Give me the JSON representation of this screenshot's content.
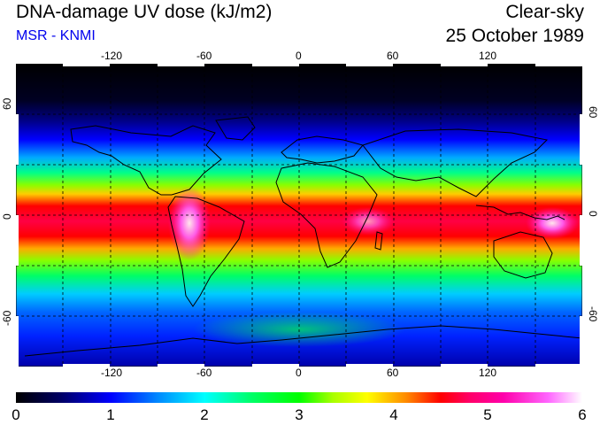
{
  "header": {
    "title": "DNA-damage UV dose (kJ/m2)",
    "subtitle": "MSR - KNMI",
    "condition": "Clear-sky",
    "date": "25 October 1989"
  },
  "map": {
    "lon_range": [
      -180,
      180
    ],
    "lat_range": [
      -90,
      90
    ],
    "lon_ticks": [
      "-120",
      "-60",
      "0",
      "60",
      "120"
    ],
    "lat_ticks": [
      "60",
      "0",
      "-60"
    ],
    "gridlines": true
  },
  "colorbar": {
    "min": 0,
    "max": 6,
    "labels": [
      "0",
      "1",
      "2",
      "3",
      "4",
      "5",
      "6"
    ],
    "colors": [
      "#000000",
      "#0000ff",
      "#00ffff",
      "#00ff00",
      "#ffff00",
      "#ff0000",
      "#ff00aa",
      "#ffffff"
    ]
  }
}
